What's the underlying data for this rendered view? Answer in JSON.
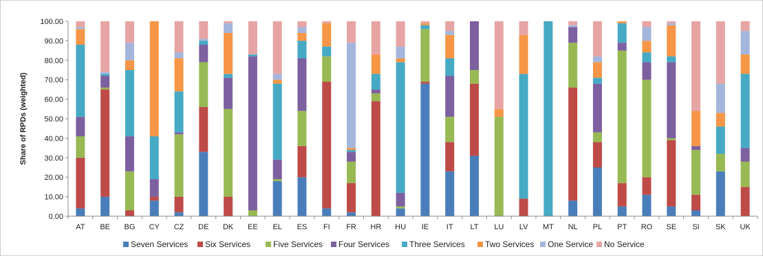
{
  "chart_data": {
    "type": "bar",
    "stacked": true,
    "ylabel": "Share of RPDs (weighted)",
    "xlabel": "",
    "ylim": [
      0,
      100
    ],
    "yticks": [
      "0.00",
      "10.00",
      "20.00",
      "30.00",
      "40.00",
      "50.00",
      "60.00",
      "70.00",
      "80.00",
      "90.00",
      "100.00"
    ],
    "grid": false,
    "legend_position": "bottom",
    "categories": [
      "AT",
      "BE",
      "BG",
      "CY",
      "CZ",
      "DE",
      "DK",
      "EE",
      "EL",
      "ES",
      "FI",
      "FR",
      "HR",
      "HU",
      "IE",
      "IT",
      "LT",
      "LU",
      "LV",
      "MT",
      "NL",
      "PL",
      "PT",
      "RO",
      "SE",
      "SI",
      "SK",
      "UK"
    ],
    "series": [
      {
        "name": "Seven Services",
        "color": "#4a7ebb",
        "values": [
          4,
          10,
          0,
          8,
          2,
          33,
          0,
          0,
          18,
          20,
          4,
          2,
          0,
          4,
          68,
          23,
          31,
          0,
          0,
          0,
          8,
          25,
          5,
          11,
          5,
          3,
          23,
          0
        ]
      },
      {
        "name": "Six Services",
        "color": "#be4b48",
        "values": [
          26,
          55,
          3,
          2,
          8,
          23,
          10,
          0,
          0,
          16,
          65,
          15,
          59,
          0,
          1,
          15,
          37,
          0,
          9,
          0,
          58,
          13,
          12,
          9,
          34,
          8,
          0,
          15
        ]
      },
      {
        "name": "Five Services",
        "color": "#98b954",
        "values": [
          11,
          1,
          20,
          0,
          32,
          23,
          45,
          3,
          1,
          18,
          13,
          11,
          4,
          1,
          27,
          13,
          7,
          51,
          0,
          0,
          23,
          5,
          68,
          50,
          1,
          23,
          9,
          13
        ]
      },
      {
        "name": "Four Services",
        "color": "#7d60a0",
        "values": [
          10,
          6,
          18,
          9,
          1,
          9,
          16,
          79,
          10,
          27,
          0,
          5,
          2,
          7,
          0,
          21,
          25,
          0,
          0,
          0,
          8,
          25,
          4,
          9,
          39,
          2,
          0,
          7
        ]
      },
      {
        "name": "Three Services",
        "color": "#46aac5",
        "values": [
          37,
          1,
          34,
          22,
          21,
          2,
          2,
          1,
          39,
          9,
          5,
          1,
          8,
          67,
          2,
          9,
          0,
          0,
          64,
          100,
          0,
          3,
          10,
          5,
          3,
          0,
          14,
          38
        ]
      },
      {
        "name": "Two Services",
        "color": "#f79646",
        "values": [
          8,
          0,
          5,
          60,
          17,
          0,
          21,
          0,
          2,
          4,
          12,
          1,
          10,
          2,
          1,
          12,
          1,
          4,
          20,
          0,
          0,
          8,
          1,
          6,
          16,
          18,
          7,
          10
        ]
      },
      {
        "name": "One Service",
        "color": "#a5b6dc",
        "values": [
          1,
          1,
          9,
          0,
          3,
          1,
          5,
          0,
          3,
          3,
          0,
          54,
          0,
          6,
          0,
          2,
          0,
          0,
          0,
          0,
          1,
          3,
          0,
          7,
          1,
          0,
          15,
          12
        ]
      },
      {
        "name": "No Service",
        "color": "#e6a5a4",
        "values": [
          3,
          26,
          11,
          1,
          16,
          9,
          1,
          17,
          27,
          3,
          1,
          11,
          17,
          13,
          1,
          5,
          1,
          45,
          7,
          0,
          2,
          18,
          0,
          3,
          1,
          46,
          32,
          5
        ]
      }
    ]
  }
}
